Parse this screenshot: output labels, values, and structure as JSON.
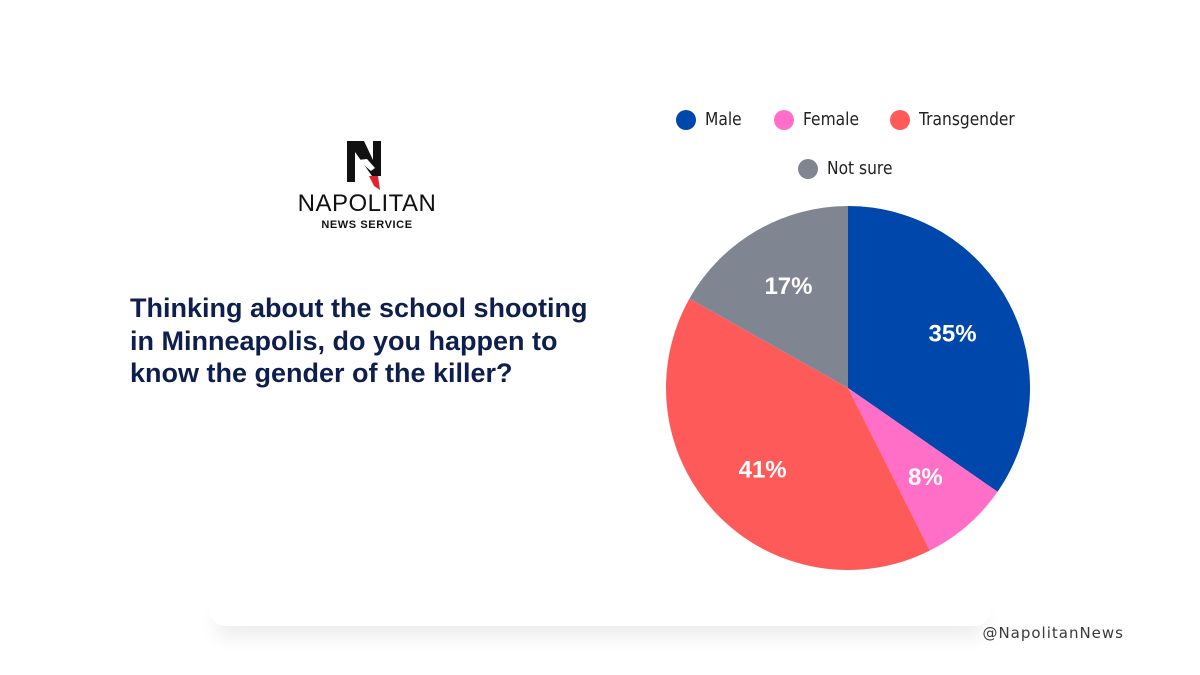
{
  "branding": {
    "name": "NAPOLITAN",
    "subtitle": "NEWS SERVICE",
    "logo_icon": "napolitan-n-bird-logo",
    "handle": "@NapolitanNews"
  },
  "question": "Thinking about the school shooting in Minneapolis, do you happen to know the gender of the killer?",
  "colors": {
    "male": "#0047ab",
    "female": "#ff6ec7",
    "transgender": "#ff5a5a",
    "not_sure": "#7f8591",
    "question_text": "#0f1f4d"
  },
  "chart_data": {
    "type": "pie",
    "title": "",
    "legend_position": "top",
    "start_angle": "12 o'clock, clockwise",
    "slices": [
      {
        "label": "Male",
        "value": 35,
        "display": "35%",
        "color": "#0047ab"
      },
      {
        "label": "Female",
        "value": 8,
        "display": "8%",
        "color": "#ff6ec7"
      },
      {
        "label": "Transgender",
        "value": 41,
        "display": "41%",
        "color": "#ff5a5a"
      },
      {
        "label": "Not sure",
        "value": 17,
        "display": "17%",
        "color": "#7f8591"
      }
    ]
  }
}
